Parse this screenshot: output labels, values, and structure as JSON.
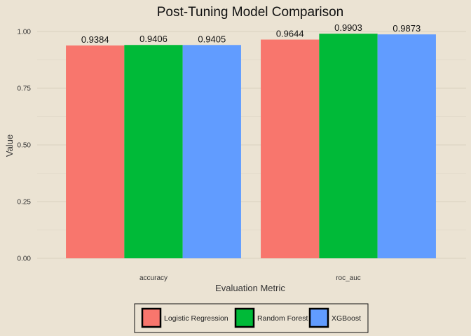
{
  "chart_data": {
    "type": "bar",
    "title": "Post-Tuning Model Comparison",
    "xlabel": "Evaluation Metric",
    "ylabel": "Value",
    "categories": [
      "accuracy",
      "roc_auc"
    ],
    "series": [
      {
        "name": "Logistic Regression",
        "color": "#f8766d",
        "values": [
          0.9384,
          0.9644
        ],
        "labels": [
          "0.9384",
          "0.9644"
        ]
      },
      {
        "name": "Random Forest",
        "color": "#00ba38",
        "values": [
          0.9406,
          0.9903
        ],
        "labels": [
          "0.9406",
          "0.9903"
        ]
      },
      {
        "name": "XGBoost",
        "color": "#619cff",
        "values": [
          0.9405,
          0.9873
        ],
        "labels": [
          "0.9405",
          "0.9873"
        ]
      }
    ],
    "ylim": [
      0,
      1
    ],
    "yticks": [
      0,
      0.25,
      0.5,
      0.75,
      1
    ],
    "ytick_labels": [
      "0.00",
      "0.25",
      "0.50",
      "0.75",
      "1.00"
    ],
    "grid": true,
    "legend_position": "bottom"
  }
}
